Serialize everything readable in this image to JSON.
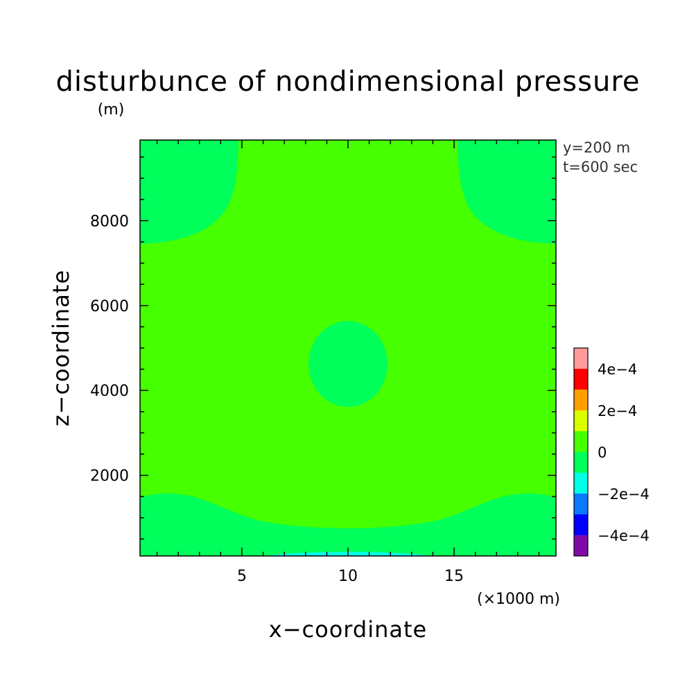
{
  "chart_data": {
    "type": "heatmap",
    "title": "disturbunce of nondimensional pressure",
    "title_unit": "(m)",
    "xlabel": "x−coordinate",
    "ylabel": "z−coordinate",
    "x_unit": "(×1000 m)",
    "xlim": [
      0.2,
      19.8
    ],
    "ylim": [
      100,
      9900
    ],
    "x_ticks": [
      5,
      10,
      15
    ],
    "x_tick_labels": [
      "5",
      "10",
      "15"
    ],
    "y_ticks": [
      2000,
      4000,
      6000,
      8000
    ],
    "y_tick_labels": [
      "2000",
      "4000",
      "6000",
      "8000"
    ],
    "annotations": [
      "y=200 m",
      "t=600 sec"
    ],
    "colorbar": {
      "levels": [
        -0.0005,
        -0.0004,
        -0.0003,
        -0.0002,
        -0.0001,
        0,
        0.0001,
        0.0002,
        0.0003,
        0.0004,
        0.0005
      ],
      "colors": [
        "#7f0aa5",
        "#0000ff",
        "#0a78ff",
        "#00ffe6",
        "#00ff5a",
        "#46ff00",
        "#dcff00",
        "#ffa000",
        "#ff0000",
        "#ff9b9b"
      ],
      "labels": [
        "4e−4",
        "2e−4",
        "0",
        "−2e−4",
        "−4e−4"
      ]
    },
    "background_range": [
      0,
      0.0001
    ],
    "regions": [
      {
        "name": "top-left-corner",
        "range": [
          -0.0001,
          0
        ]
      },
      {
        "name": "top-right-corner",
        "range": [
          -0.0001,
          0
        ]
      },
      {
        "name": "center-blob",
        "range": [
          -0.0001,
          0
        ],
        "center": [
          10,
          4600
        ]
      },
      {
        "name": "bottom-band",
        "range": [
          -0.0001,
          0
        ]
      },
      {
        "name": "bottom-center-sliver",
        "range": [
          -0.0002,
          -0.0001
        ],
        "center": [
          10,
          100
        ]
      }
    ]
  }
}
